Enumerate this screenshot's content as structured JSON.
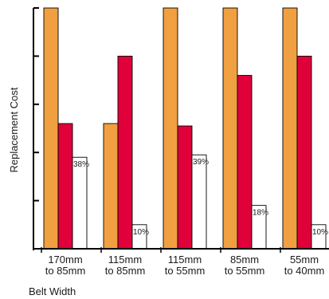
{
  "chart_data": {
    "type": "bar",
    "title": "",
    "xlabel": "Belt Width",
    "ylabel": "Replacement Cost",
    "ylim": [
      0,
      100
    ],
    "yticks": [
      0,
      20,
      40,
      60,
      80,
      100
    ],
    "grid": false,
    "legend": "none",
    "categories": [
      [
        "170mm",
        "to 85mm"
      ],
      [
        "115mm",
        "to 85mm"
      ],
      [
        "115mm",
        "to 55mm"
      ],
      [
        "85mm",
        "to 55mm"
      ],
      [
        "55mm",
        "to 40mm"
      ]
    ],
    "series": [
      {
        "values": [
          100,
          52,
          100,
          100,
          100
        ],
        "color": "#F0A040"
      },
      {
        "values": [
          52,
          80,
          51,
          72,
          80
        ],
        "color": "#E0003A"
      },
      {
        "values": [
          38,
          10,
          39,
          18,
          10
        ],
        "color": "#FFFFFF",
        "labels": [
          "38%",
          "10%",
          "39%",
          "18%",
          "10%"
        ]
      }
    ]
  }
}
